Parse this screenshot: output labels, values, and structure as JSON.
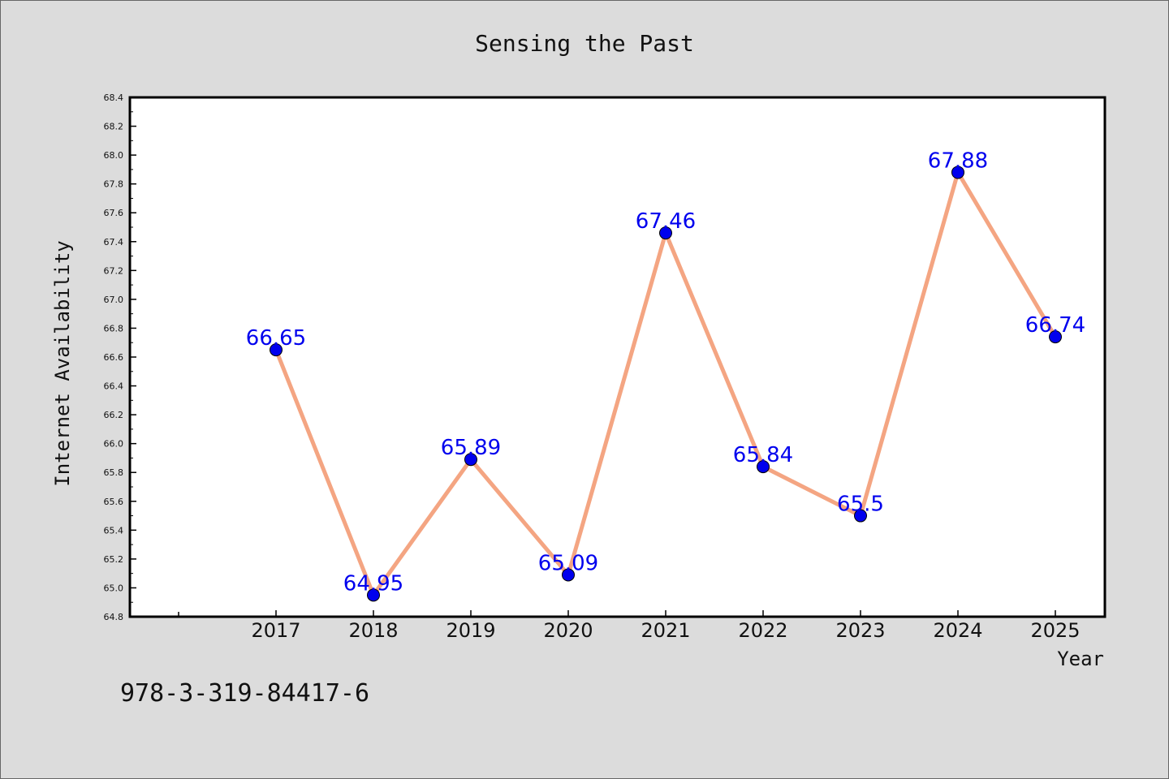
{
  "chart_data": {
    "type": "line",
    "title": "Sensing the Past",
    "xlabel": "Year",
    "ylabel": "Internet Availability",
    "categories": [
      "2017",
      "2018",
      "2019",
      "2020",
      "2021",
      "2022",
      "2023",
      "2024",
      "2025"
    ],
    "series": [
      {
        "values": [
          66.65,
          64.95,
          65.89,
          65.09,
          67.46,
          65.84,
          65.5,
          67.88,
          66.74
        ],
        "data_labels": [
          "66.65",
          "64.95",
          "65.89",
          "65.09",
          "67.46",
          "65.84",
          "65.5",
          "67.88",
          "66.74"
        ]
      }
    ],
    "ylim": [
      64.8,
      68.4
    ],
    "y_ticks": [
      "64.8",
      "65.0",
      "65.2",
      "65.4",
      "65.6",
      "65.8",
      "66.0",
      "66.2",
      "66.4",
      "66.6",
      "66.8",
      "67.0",
      "67.2",
      "67.4",
      "67.6",
      "67.8",
      "68.0",
      "68.2",
      "68.4"
    ],
    "grid": false,
    "legend": "none",
    "colors": {
      "line": "#f4a582",
      "marker": "#0000ee",
      "data_label": "#0000ee",
      "plot_background": "#ffffff",
      "figure_background": "#dcdcdc"
    }
  },
  "footer_code": "978-3-319-84417-6"
}
